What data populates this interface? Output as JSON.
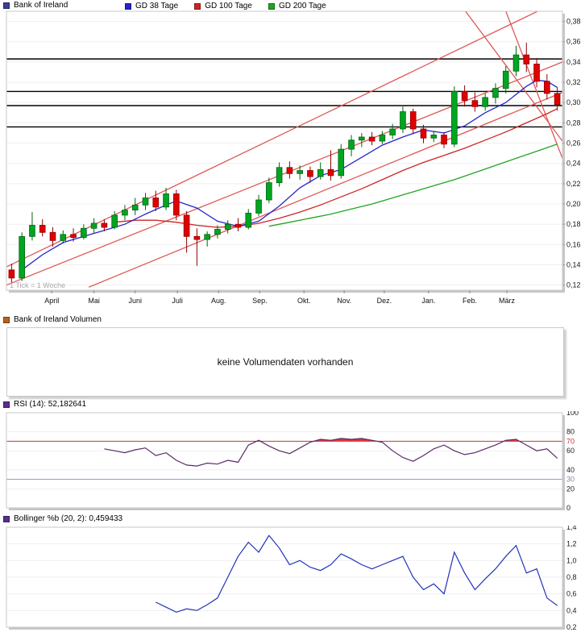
{
  "main_header": {
    "title": "Bank of Ireland",
    "title_color": "#3d3d99",
    "legend": [
      {
        "label": "GD 38 Tage",
        "color": "#2525cc"
      },
      {
        "label": "GD 100 Tage",
        "color": "#cc2525"
      },
      {
        "label": "GD 200 Tage",
        "color": "#22a522"
      }
    ]
  },
  "volume_panel": {
    "icon_color": "#b4641e",
    "title": "Bank of Ireland Volumen",
    "message": "keine Volumendaten vorhanden"
  },
  "rsi_panel": {
    "icon_color": "#5b2d8e",
    "title": "RSI (14): 52,182641"
  },
  "bollinger_panel": {
    "icon_color": "#5b2d8e",
    "title": "Bollinger %b (20, 2): 0,459433"
  },
  "chart_data": [
    {
      "type": "candlestick",
      "title": "Bank of Ireland",
      "tick_note": "1 Tick = 1 Woche",
      "weeks": 54,
      "ylim": [
        0.115,
        0.39
      ],
      "y_ticks": [
        {
          "v": 0.38,
          "label": "0,38"
        },
        {
          "v": 0.36,
          "label": "0,36"
        },
        {
          "v": 0.34,
          "label": "0,34"
        },
        {
          "v": 0.32,
          "label": "0,32"
        },
        {
          "v": 0.3,
          "label": "0,30"
        },
        {
          "v": 0.28,
          "label": "0,28"
        },
        {
          "v": 0.26,
          "label": "0,26"
        },
        {
          "v": 0.24,
          "label": "0,24"
        },
        {
          "v": 0.22,
          "label": "0,22"
        },
        {
          "v": 0.2,
          "label": "0,20"
        },
        {
          "v": 0.18,
          "label": "0,18"
        },
        {
          "v": 0.16,
          "label": "0,16"
        },
        {
          "v": 0.14,
          "label": "0,14"
        },
        {
          "v": 0.12,
          "label": "0,12"
        }
      ],
      "x_months": [
        {
          "label": "April",
          "week": 4.4
        },
        {
          "label": "Mai",
          "week": 8.5
        },
        {
          "label": "Juni",
          "week": 12.5
        },
        {
          "label": "Juli",
          "week": 16.6
        },
        {
          "label": "Aug.",
          "week": 20.6
        },
        {
          "label": "Sep.",
          "week": 24.6
        },
        {
          "label": "Okt.",
          "week": 28.9
        },
        {
          "label": "Nov.",
          "week": 32.8
        },
        {
          "label": "Dez.",
          "week": 36.7
        },
        {
          "label": "Jan.",
          "week": 41.0
        },
        {
          "label": "Feb.",
          "week": 45.0
        },
        {
          "label": "März",
          "week": 48.6
        }
      ],
      "up_color": "#00a520",
      "up_stroke": "#006414",
      "down_color": "#e00000",
      "down_stroke": "#8f0000",
      "black_lines": [
        0.343,
        0.311,
        0.297,
        0.276
      ],
      "trend_lines": {
        "color": "#e05858",
        "segments": [
          [
            0,
            0.138,
            52,
            0.392
          ],
          [
            0,
            0.12,
            54,
            0.34
          ],
          [
            8,
            0.118,
            54,
            0.31
          ],
          [
            44,
            0.398,
            54,
            0.262
          ],
          [
            48.2,
            0.398,
            54,
            0.245
          ]
        ]
      },
      "candles": [
        [
          0.135,
          0.141,
          0.122,
          0.127
        ],
        [
          0.127,
          0.172,
          0.124,
          0.168
        ],
        [
          0.168,
          0.192,
          0.164,
          0.179
        ],
        [
          0.179,
          0.185,
          0.168,
          0.172
        ],
        [
          0.172,
          0.177,
          0.158,
          0.164
        ],
        [
          0.164,
          0.174,
          0.161,
          0.17
        ],
        [
          0.17,
          0.176,
          0.163,
          0.167
        ],
        [
          0.167,
          0.18,
          0.165,
          0.176
        ],
        [
          0.176,
          0.186,
          0.171,
          0.181
        ],
        [
          0.181,
          0.185,
          0.173,
          0.177
        ],
        [
          0.177,
          0.193,
          0.175,
          0.189
        ],
        [
          0.189,
          0.199,
          0.184,
          0.194
        ],
        [
          0.194,
          0.206,
          0.189,
          0.199
        ],
        [
          0.199,
          0.211,
          0.194,
          0.206
        ],
        [
          0.206,
          0.213,
          0.193,
          0.197
        ],
        [
          0.197,
          0.216,
          0.194,
          0.21
        ],
        [
          0.21,
          0.214,
          0.184,
          0.189
        ],
        [
          0.189,
          0.193,
          0.152,
          0.168
        ],
        [
          0.168,
          0.176,
          0.139,
          0.165
        ],
        [
          0.165,
          0.173,
          0.158,
          0.17
        ],
        [
          0.17,
          0.179,
          0.166,
          0.175
        ],
        [
          0.175,
          0.184,
          0.171,
          0.18
        ],
        [
          0.18,
          0.186,
          0.173,
          0.177
        ],
        [
          0.177,
          0.195,
          0.175,
          0.191
        ],
        [
          0.191,
          0.209,
          0.188,
          0.204
        ],
        [
          0.204,
          0.226,
          0.201,
          0.221
        ],
        [
          0.221,
          0.241,
          0.217,
          0.236
        ],
        [
          0.236,
          0.242,
          0.225,
          0.23
        ],
        [
          0.23,
          0.238,
          0.224,
          0.233
        ],
        [
          0.233,
          0.237,
          0.221,
          0.227
        ],
        [
          0.227,
          0.241,
          0.224,
          0.234
        ],
        [
          0.234,
          0.253,
          0.223,
          0.228
        ],
        [
          0.228,
          0.259,
          0.225,
          0.254
        ],
        [
          0.254,
          0.268,
          0.247,
          0.263
        ],
        [
          0.263,
          0.27,
          0.256,
          0.266
        ],
        [
          0.266,
          0.271,
          0.258,
          0.262
        ],
        [
          0.262,
          0.272,
          0.259,
          0.268
        ],
        [
          0.268,
          0.279,
          0.264,
          0.274
        ],
        [
          0.274,
          0.296,
          0.27,
          0.291
        ],
        [
          0.291,
          0.294,
          0.269,
          0.274
        ],
        [
          0.274,
          0.278,
          0.26,
          0.265
        ],
        [
          0.265,
          0.272,
          0.261,
          0.268
        ],
        [
          0.268,
          0.271,
          0.255,
          0.259
        ],
        [
          0.259,
          0.316,
          0.256,
          0.311
        ],
        [
          0.311,
          0.317,
          0.296,
          0.302
        ],
        [
          0.302,
          0.31,
          0.291,
          0.296
        ],
        [
          0.296,
          0.309,
          0.292,
          0.305
        ],
        [
          0.305,
          0.319,
          0.299,
          0.314
        ],
        [
          0.314,
          0.336,
          0.309,
          0.331
        ],
        [
          0.331,
          0.356,
          0.326,
          0.347
        ],
        [
          0.347,
          0.359,
          0.33,
          0.338
        ],
        [
          0.338,
          0.344,
          0.315,
          0.321
        ],
        [
          0.321,
          0.328,
          0.303,
          0.309
        ],
        [
          0.309,
          0.315,
          0.292,
          0.298
        ]
      ],
      "ma_series": [
        {
          "name": "GD 38 Tage",
          "color": "#2525cc",
          "points": [
            [
              1,
              0.135
            ],
            [
              3,
              0.15
            ],
            [
              5,
              0.162
            ],
            [
              7,
              0.168
            ],
            [
              9,
              0.174
            ],
            [
              11,
              0.18
            ],
            [
              13,
              0.19
            ],
            [
              15,
              0.199
            ],
            [
              16,
              0.203
            ],
            [
              18,
              0.196
            ],
            [
              20,
              0.183
            ],
            [
              22,
              0.178
            ],
            [
              24,
              0.183
            ],
            [
              26,
              0.198
            ],
            [
              28,
              0.216
            ],
            [
              30,
              0.228
            ],
            [
              32,
              0.234
            ],
            [
              34,
              0.246
            ],
            [
              36,
              0.258
            ],
            [
              38,
              0.266
            ],
            [
              40,
              0.273
            ],
            [
              42,
              0.27
            ],
            [
              44,
              0.277
            ],
            [
              46,
              0.29
            ],
            [
              48,
              0.3
            ],
            [
              50,
              0.316
            ],
            [
              51,
              0.322
            ],
            [
              52,
              0.321
            ],
            [
              53,
              0.315
            ]
          ]
        },
        {
          "name": "GD 100 Tage",
          "color": "#cc2525",
          "points": [
            [
              10,
              0.182
            ],
            [
              12,
              0.184
            ],
            [
              14,
              0.184
            ],
            [
              16,
              0.182
            ],
            [
              18,
              0.179
            ],
            [
              20,
              0.177
            ],
            [
              22,
              0.178
            ],
            [
              24,
              0.181
            ],
            [
              26,
              0.186
            ],
            [
              28,
              0.192
            ],
            [
              30,
              0.199
            ],
            [
              32,
              0.207
            ],
            [
              34,
              0.215
            ],
            [
              36,
              0.224
            ],
            [
              38,
              0.233
            ],
            [
              40,
              0.241
            ],
            [
              42,
              0.248
            ],
            [
              44,
              0.255
            ],
            [
              46,
              0.263
            ],
            [
              48,
              0.271
            ],
            [
              50,
              0.28
            ],
            [
              52,
              0.289
            ],
            [
              53,
              0.294
            ]
          ]
        },
        {
          "name": "GD 200 Tage",
          "color": "#22a522",
          "points": [
            [
              25,
              0.178
            ],
            [
              27,
              0.182
            ],
            [
              29,
              0.186
            ],
            [
              31,
              0.19
            ],
            [
              33,
              0.195
            ],
            [
              35,
              0.2
            ],
            [
              37,
              0.206
            ],
            [
              39,
              0.212
            ],
            [
              41,
              0.218
            ],
            [
              43,
              0.224
            ],
            [
              45,
              0.231
            ],
            [
              47,
              0.238
            ],
            [
              49,
              0.245
            ],
            [
              51,
              0.252
            ],
            [
              53,
              0.259
            ]
          ]
        }
      ]
    },
    {
      "type": "line",
      "title": "RSI (14)",
      "current_value": "52,182641",
      "ylim": [
        0,
        100
      ],
      "y_ticks": [
        {
          "v": 100,
          "label": "100"
        },
        {
          "v": 80,
          "label": "80"
        },
        {
          "v": 70,
          "label": "70",
          "color": "#cc3333"
        },
        {
          "v": 60,
          "label": "60"
        },
        {
          "v": 40,
          "label": "40"
        },
        {
          "v": 30,
          "label": "30",
          "color": "#7788aa"
        },
        {
          "v": 20,
          "label": "20"
        },
        {
          "v": 0,
          "label": "0"
        }
      ],
      "overbought": 70,
      "oversold": 30,
      "ob_color": "#cc3333",
      "os_color": "#8899bb",
      "line_color": "#5c2a66",
      "over_fill": "#e03838",
      "start_week": 9,
      "values": [
        62,
        60,
        58,
        61,
        63,
        55,
        58,
        50,
        45,
        44,
        47,
        46,
        50,
        48,
        66,
        71,
        65,
        60,
        57,
        63,
        69,
        72,
        71,
        73,
        72,
        73,
        71,
        69,
        60,
        53,
        49,
        55,
        62,
        66,
        60,
        56,
        58,
        62,
        66,
        71,
        72,
        66,
        60,
        62,
        52.18
      ]
    },
    {
      "type": "line",
      "title": "Bollinger %b (20, 2)",
      "current_value": "0,459433",
      "ylim": [
        0.2,
        1.4
      ],
      "y_ticks": [
        {
          "v": 1.4,
          "label": "1,4"
        },
        {
          "v": 1.2,
          "label": "1,2"
        },
        {
          "v": 1.0,
          "label": "1,0"
        },
        {
          "v": 0.8,
          "label": "0,8"
        },
        {
          "v": 0.6,
          "label": "0,6"
        },
        {
          "v": 0.4,
          "label": "0,4"
        },
        {
          "v": 0.2,
          "label": "0,2"
        }
      ],
      "line_color": "#2233bb",
      "start_week": 14,
      "values": [
        0.5,
        0.44,
        0.38,
        0.42,
        0.4,
        0.47,
        0.55,
        0.8,
        1.05,
        1.22,
        1.1,
        1.3,
        1.15,
        0.95,
        1.0,
        0.92,
        0.88,
        0.95,
        1.08,
        1.02,
        0.95,
        0.9,
        0.95,
        1.0,
        1.05,
        0.8,
        0.65,
        0.72,
        0.6,
        1.1,
        0.85,
        0.65,
        0.78,
        0.9,
        1.05,
        1.18,
        0.85,
        0.9,
        0.55,
        0.46
      ]
    }
  ]
}
